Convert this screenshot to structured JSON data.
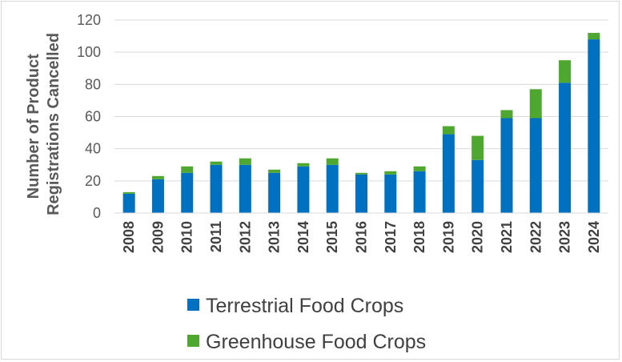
{
  "chart_data": {
    "type": "bar",
    "stacked": true,
    "title": "",
    "xlabel": "",
    "ylabel": "Number of Product Registrations Cancelled",
    "ylabel_lines": [
      "Number of Product",
      "Registrations Cancelled"
    ],
    "ylim": [
      0,
      120
    ],
    "yticks": [
      0,
      20,
      40,
      60,
      80,
      100,
      120
    ],
    "grid": true,
    "legend_position": "bottom",
    "categories": [
      "2008",
      "2009",
      "2010",
      "2011",
      "2012",
      "2013",
      "2014",
      "2015",
      "2016",
      "2017",
      "2018",
      "2019",
      "2020",
      "2021",
      "2022",
      "2023",
      "2024"
    ],
    "series": [
      {
        "name": "Terrestrial Food Crops",
        "color": "#0070C0",
        "values": [
          12,
          21,
          25,
          30,
          30,
          25,
          29,
          30,
          24,
          24,
          26,
          49,
          33,
          59,
          59,
          81,
          108
        ]
      },
      {
        "name": "Greenhouse Food Crops",
        "color": "#4EA72E",
        "values": [
          1,
          2,
          4,
          2,
          4,
          2,
          2,
          4,
          1,
          2,
          3,
          5,
          15,
          5,
          18,
          14,
          4
        ]
      }
    ]
  }
}
